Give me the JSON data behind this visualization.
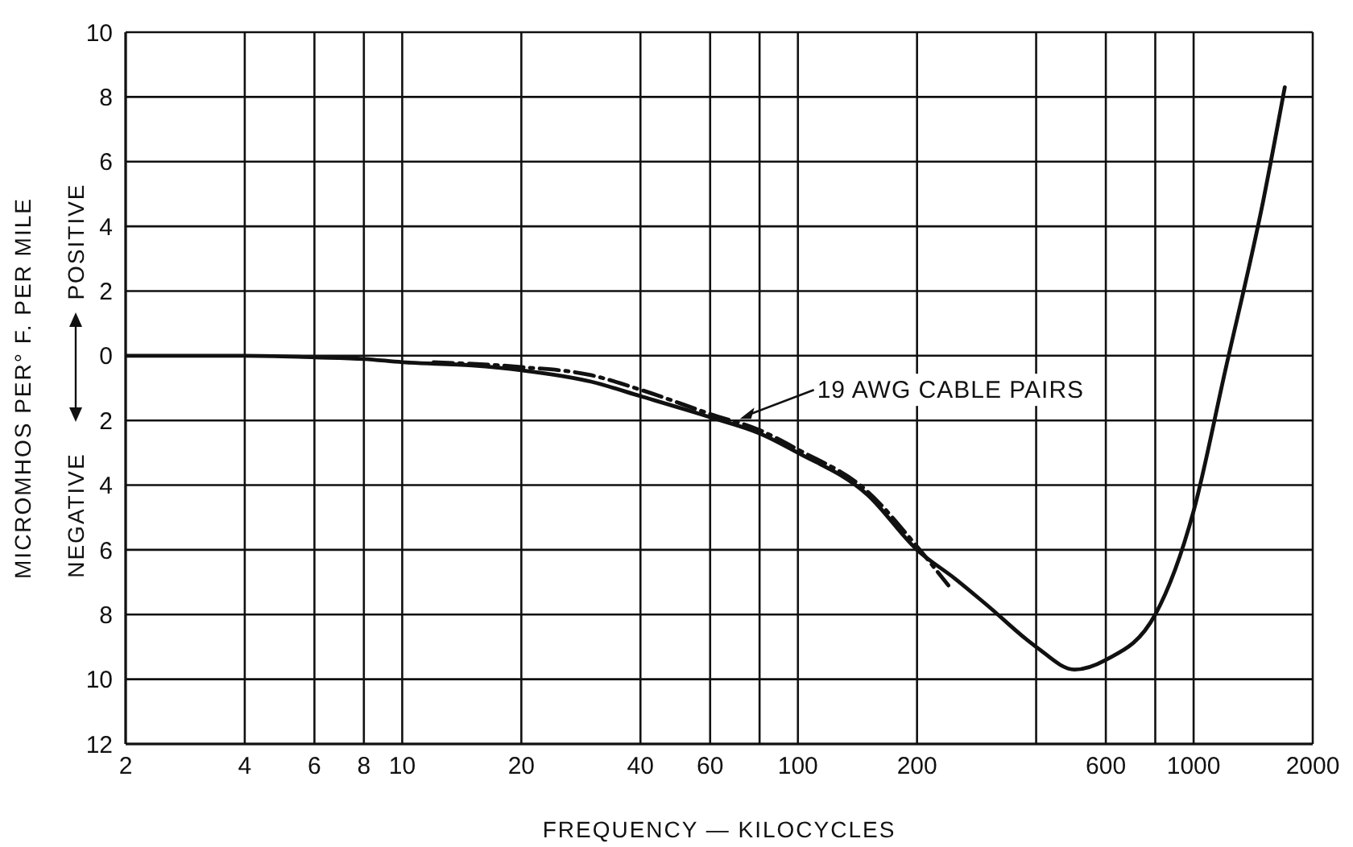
{
  "chart_data": {
    "type": "line",
    "xlabel": "FREQUENCY — KILOCYCLES",
    "ylabel": "MICROMHOS PER° F. PER MILE",
    "annotations": [
      "NEGATIVE",
      "POSITIVE",
      {
        "text": "19 AWG CABLE PAIRS",
        "x": 70,
        "y": -2
      }
    ],
    "log": "x",
    "grid": true,
    "marker": "none",
    "xlim": [
      2,
      2000
    ],
    "xticks": [
      2,
      4,
      6,
      8,
      10,
      20,
      40,
      60,
      {
        "value": 80,
        "label": null
      },
      100,
      200,
      {
        "value": 400,
        "label": null
      },
      600,
      {
        "value": 800,
        "label": null
      },
      1000,
      2000
    ],
    "ylim": [
      -12,
      10
    ],
    "yticks": [
      10,
      8,
      6,
      4,
      2,
      0,
      {
        "value": -2,
        "label": "2"
      },
      {
        "value": -4,
        "label": "4"
      },
      {
        "value": -6,
        "label": "6"
      },
      {
        "value": -8,
        "label": "8"
      },
      {
        "value": -10,
        "label": "10"
      },
      {
        "value": -12,
        "label": "12"
      }
    ],
    "series": [
      {
        "color": "#111111",
        "line_style": "solid",
        "x": [
          2,
          4,
          6,
          8,
          10,
          15,
          20,
          30,
          40,
          60,
          80,
          100,
          150,
          200,
          250,
          300,
          400,
          500,
          600,
          800,
          1000,
          1200,
          1500,
          1700
        ],
        "values": [
          0,
          0,
          -0.05,
          -0.1,
          -0.2,
          -0.3,
          -0.45,
          -0.8,
          -1.25,
          -1.9,
          -2.4,
          -3.0,
          -4.3,
          -6.0,
          -6.9,
          -7.7,
          -9.0,
          -9.7,
          -9.4,
          -8.0,
          -4.8,
          -0.5,
          4.8,
          8.3
        ]
      },
      {
        "color": "#111111",
        "line_style": "dashed",
        "x": [
          12,
          20,
          30,
          40,
          60,
          80,
          100,
          150,
          200,
          240
        ],
        "values": [
          -0.2,
          -0.35,
          -0.6,
          -1.05,
          -1.8,
          -2.3,
          -2.9,
          -4.2,
          -5.9,
          -7.1
        ]
      }
    ]
  }
}
